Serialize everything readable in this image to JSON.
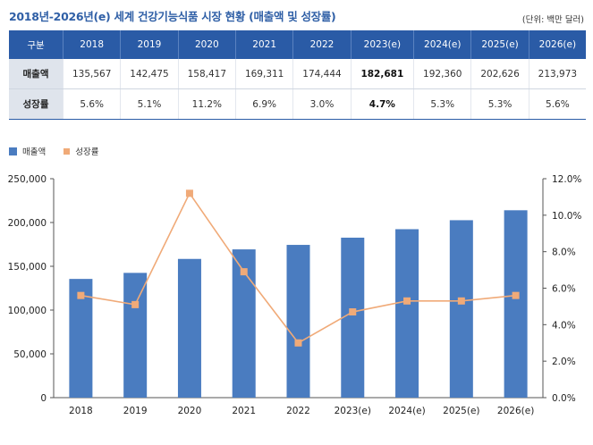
{
  "title": "2018년-2026년(e) 세계 건강기능식품 시장 현황 (매출액 및 성장률)",
  "unit": "(단위: 백만 달러)",
  "table": {
    "header_label": "구분",
    "years": [
      "2018",
      "2019",
      "2020",
      "2021",
      "2022",
      "2023(e)",
      "2024(e)",
      "2025(e)",
      "2026(e)"
    ],
    "rows": [
      {
        "label": "매출액",
        "cells": [
          "135,567",
          "142,475",
          "158,417",
          "169,311",
          "174,444",
          "182,681",
          "192,360",
          "202,626",
          "213,973"
        ]
      },
      {
        "label": "성장률",
        "cells": [
          "5.6%",
          "5.1%",
          "11.2%",
          "6.9%",
          "3.0%",
          "4.7%",
          "5.3%",
          "5.3%",
          "5.6%"
        ]
      }
    ],
    "highlight_index": 5
  },
  "legend": {
    "bar": "매출액",
    "line": "성장률"
  },
  "colors": {
    "bar": "#4a7cc0",
    "line": "#f0aa78",
    "header": "#2a5ba6",
    "title": "#2f5fa6"
  },
  "chart_data": {
    "type": "bar",
    "categories": [
      "2018",
      "2019",
      "2020",
      "2021",
      "2022",
      "2023(e)",
      "2024(e)",
      "2025(e)",
      "2026(e)"
    ],
    "series": [
      {
        "name": "매출액",
        "type": "bar",
        "axis": "left",
        "values": [
          135567,
          142475,
          158417,
          169311,
          174444,
          182681,
          192360,
          202626,
          213973
        ]
      },
      {
        "name": "성장률",
        "type": "line",
        "axis": "right",
        "values": [
          5.6,
          5.1,
          11.2,
          6.9,
          3.0,
          4.7,
          5.3,
          5.3,
          5.6
        ]
      }
    ],
    "y_left": {
      "min": 0,
      "max": 250000,
      "ticks": [
        "0",
        "50,000",
        "100,000",
        "150,000",
        "200,000",
        "250,000"
      ]
    },
    "y_right": {
      "min": 0,
      "max": 12,
      "ticks": [
        "0.0%",
        "2.0%",
        "4.0%",
        "6.0%",
        "8.0%",
        "10.0%",
        "12.0%"
      ]
    },
    "legend_position": "top-left"
  }
}
